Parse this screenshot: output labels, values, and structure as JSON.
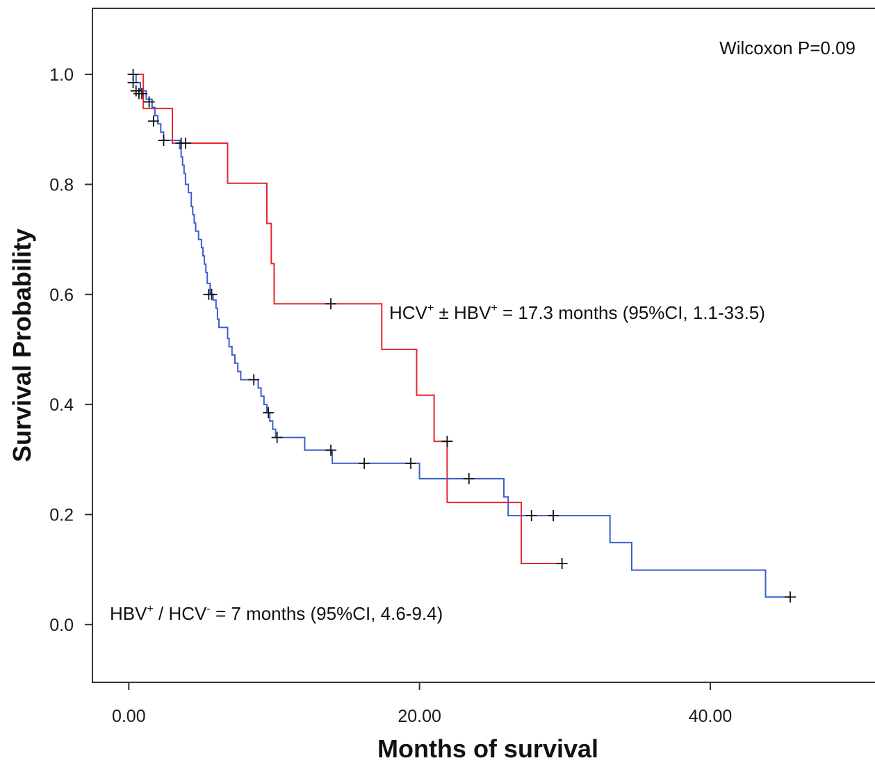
{
  "chart_data": {
    "type": "line",
    "title": "",
    "xlabel": "Months of survival",
    "ylabel": "Survival Probability",
    "xlim": [
      -2.5,
      52
    ],
    "ylim": [
      -0.105,
      1.12
    ],
    "x_ticks": [
      0,
      20,
      40
    ],
    "x_tick_labels": [
      "0.00",
      "20.00",
      "40.00"
    ],
    "y_ticks": [
      0,
      0.2,
      0.4,
      0.6,
      0.8,
      1.0
    ],
    "y_tick_labels": [
      "0.0",
      "0.2",
      "0.4",
      "0.6",
      "0.8",
      "1.0"
    ],
    "grid": false,
    "legend": "none",
    "annotations": {
      "wilcoxon": "Wilcoxon P=0.09",
      "hcv": {
        "pre1": "HCV",
        "sup1": "+",
        "mid": " ± HBV",
        "sup2": "+",
        "post": " = 17.3 months (95%CI, 1.1-33.5)"
      },
      "hbv": {
        "pre1": "HBV",
        "sup1": "+",
        "mid": " / HCV",
        "sup2": "-",
        "post": " = 7 months (95%CI, 4.6-9.4)"
      }
    },
    "series": [
      {
        "color": "#e8262d",
        "steps": [
          [
            0,
            1.0
          ],
          [
            1.0,
            0.938
          ],
          [
            3.0,
            0.875
          ],
          [
            6.8,
            0.802
          ],
          [
            9.5,
            0.729
          ],
          [
            9.8,
            0.656
          ],
          [
            10.0,
            0.583
          ],
          [
            17.4,
            0.5
          ],
          [
            19.8,
            0.417
          ],
          [
            21.0,
            0.333
          ],
          [
            21.9,
            0.222
          ],
          [
            27.0,
            0.111
          ]
        ],
        "end_x": 29.8,
        "censored": [
          [
            0.3,
            1.0
          ],
          [
            13.9,
            0.583
          ],
          [
            21.9,
            0.333
          ],
          [
            29.8,
            0.111
          ]
        ]
      },
      {
        "color": "#3a5fcd",
        "steps": [
          [
            0,
            1.0
          ],
          [
            0.5,
            0.985
          ],
          [
            0.8,
            0.97
          ],
          [
            1.2,
            0.955
          ],
          [
            1.6,
            0.94
          ],
          [
            1.8,
            0.925
          ],
          [
            2.0,
            0.91
          ],
          [
            2.2,
            0.895
          ],
          [
            2.4,
            0.88
          ],
          [
            3.5,
            0.865
          ],
          [
            3.6,
            0.85
          ],
          [
            3.7,
            0.835
          ],
          [
            3.8,
            0.82
          ],
          [
            3.9,
            0.8
          ],
          [
            4.1,
            0.785
          ],
          [
            4.3,
            0.76
          ],
          [
            4.4,
            0.745
          ],
          [
            4.5,
            0.73
          ],
          [
            4.6,
            0.715
          ],
          [
            4.8,
            0.7
          ],
          [
            5.0,
            0.685
          ],
          [
            5.1,
            0.67
          ],
          [
            5.2,
            0.655
          ],
          [
            5.3,
            0.64
          ],
          [
            5.4,
            0.62
          ],
          [
            5.6,
            0.6
          ],
          [
            5.8,
            0.59
          ],
          [
            6.0,
            0.575
          ],
          [
            6.1,
            0.555
          ],
          [
            6.2,
            0.54
          ],
          [
            6.8,
            0.52
          ],
          [
            6.9,
            0.505
          ],
          [
            7.1,
            0.49
          ],
          [
            7.3,
            0.475
          ],
          [
            7.5,
            0.46
          ],
          [
            7.7,
            0.445
          ],
          [
            8.9,
            0.43
          ],
          [
            9.1,
            0.415
          ],
          [
            9.3,
            0.4
          ],
          [
            9.5,
            0.385
          ],
          [
            9.7,
            0.37
          ],
          [
            9.9,
            0.355
          ],
          [
            10.1,
            0.34
          ],
          [
            12.1,
            0.317
          ],
          [
            14.0,
            0.293
          ],
          [
            20.0,
            0.265
          ],
          [
            25.8,
            0.232
          ],
          [
            26.1,
            0.198
          ],
          [
            33.1,
            0.149
          ],
          [
            34.6,
            0.099
          ],
          [
            43.8,
            0.05
          ]
        ],
        "end_x": 45.5,
        "censored": [
          [
            0.3,
            0.985
          ],
          [
            0.5,
            0.97
          ],
          [
            0.7,
            0.965
          ],
          [
            0.9,
            0.965
          ],
          [
            1.4,
            0.95
          ],
          [
            1.7,
            0.915
          ],
          [
            2.4,
            0.88
          ],
          [
            3.6,
            0.875
          ],
          [
            3.9,
            0.875
          ],
          [
            5.5,
            0.6
          ],
          [
            5.7,
            0.6
          ],
          [
            8.6,
            0.445
          ],
          [
            9.6,
            0.385
          ],
          [
            10.2,
            0.34
          ],
          [
            13.9,
            0.317
          ],
          [
            16.2,
            0.293
          ],
          [
            19.4,
            0.293
          ],
          [
            23.4,
            0.265
          ],
          [
            27.7,
            0.198
          ],
          [
            29.2,
            0.198
          ],
          [
            45.5,
            0.05
          ]
        ]
      }
    ]
  }
}
